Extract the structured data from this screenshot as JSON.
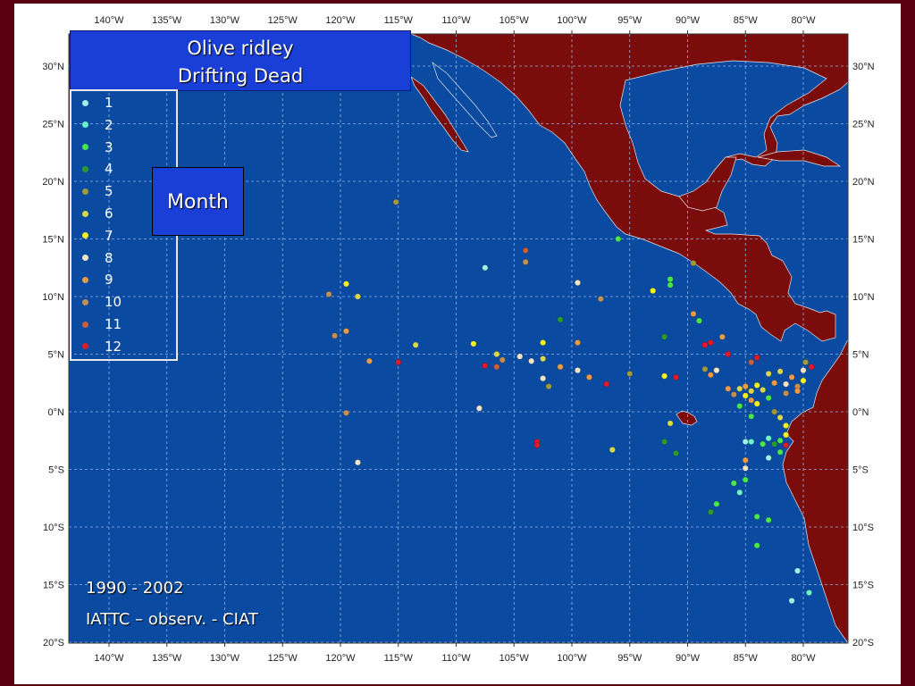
{
  "title": {
    "line1": "Olive ridley",
    "line2": "Drifting Dead"
  },
  "month_label": "Month",
  "legend": [
    {
      "label": "1",
      "color": "#9ef0e6"
    },
    {
      "label": "2",
      "color": "#6ef0c8"
    },
    {
      "label": "3",
      "color": "#49e64a"
    },
    {
      "label": "4",
      "color": "#2e9a2e"
    },
    {
      "label": "5",
      "color": "#a09a3a"
    },
    {
      "label": "6",
      "color": "#d8d84a"
    },
    {
      "label": "7",
      "color": "#f2f21e"
    },
    {
      "label": "8",
      "color": "#f0e4c8"
    },
    {
      "label": "9",
      "color": "#e89a48"
    },
    {
      "label": "10",
      "color": "#c68f52"
    },
    {
      "label": "11",
      "color": "#c8603c"
    },
    {
      "label": "12",
      "color": "#e0192c"
    }
  ],
  "credit": {
    "years": "1990 - 2002",
    "source": "IATTC – observ. - CIAT"
  },
  "axes": {
    "lon_ticks": [
      "140°W",
      "135°W",
      "130°W",
      "125°W",
      "120°W",
      "115°W",
      "110°W",
      "105°W",
      "100°W",
      "95°W",
      "90°W",
      "85°W",
      "80°W"
    ],
    "lat_ticks": [
      "30°N",
      "25°N",
      "20°N",
      "15°N",
      "10°N",
      "5°N",
      "0°N",
      "5°S",
      "10°S",
      "15°S",
      "20°S"
    ]
  },
  "colors": {
    "ocean": "#0a4aa0",
    "land": "#7a0c0c",
    "grid": "#8fb4e8"
  },
  "chart_data": {
    "type": "scatter",
    "xlabel": "",
    "ylabel": "",
    "xlim": [
      -146,
      -76
    ],
    "ylim": [
      -20,
      32
    ],
    "points": [
      {
        "lon": -115.2,
        "lat": 18.2,
        "m": 5
      },
      {
        "lon": -96,
        "lat": 15,
        "m": 3
      },
      {
        "lon": -107.5,
        "lat": 12.5,
        "m": 1
      },
      {
        "lon": -104,
        "lat": 14,
        "m": 11
      },
      {
        "lon": -104,
        "lat": 13,
        "m": 10
      },
      {
        "lon": -121,
        "lat": 10.2,
        "m": 10
      },
      {
        "lon": -119.5,
        "lat": 11.1,
        "m": 7
      },
      {
        "lon": -118.5,
        "lat": 10,
        "m": 6
      },
      {
        "lon": -120.5,
        "lat": 6.6,
        "m": 10
      },
      {
        "lon": -119.5,
        "lat": 7,
        "m": 9
      },
      {
        "lon": -117.5,
        "lat": 4.4,
        "m": 9
      },
      {
        "lon": -115,
        "lat": 4.3,
        "m": 12
      },
      {
        "lon": -113.5,
        "lat": 5.8,
        "m": 6
      },
      {
        "lon": -108.5,
        "lat": 5.9,
        "m": 7
      },
      {
        "lon": -107.5,
        "lat": 4,
        "m": 12
      },
      {
        "lon": -106.5,
        "lat": 3.9,
        "m": 11
      },
      {
        "lon": -106.5,
        "lat": 5,
        "m": 6
      },
      {
        "lon": -106,
        "lat": 4.5,
        "m": 10
      },
      {
        "lon": -104.5,
        "lat": 4.8,
        "m": 8
      },
      {
        "lon": -103.5,
        "lat": 4.4,
        "m": 8
      },
      {
        "lon": -102.5,
        "lat": 4.6,
        "m": 6
      },
      {
        "lon": -102.5,
        "lat": 6,
        "m": 7
      },
      {
        "lon": -102.5,
        "lat": 2.9,
        "m": 8
      },
      {
        "lon": -102,
        "lat": 2.2,
        "m": 5
      },
      {
        "lon": -101,
        "lat": 3.9,
        "m": 9
      },
      {
        "lon": -101,
        "lat": 8,
        "m": 4
      },
      {
        "lon": -99.5,
        "lat": 11.2,
        "m": 8
      },
      {
        "lon": -99.5,
        "lat": 6,
        "m": 9
      },
      {
        "lon": -99.5,
        "lat": 3.6,
        "m": 8
      },
      {
        "lon": -98.5,
        "lat": 3,
        "m": 9
      },
      {
        "lon": -97.5,
        "lat": 9.8,
        "m": 10
      },
      {
        "lon": -97,
        "lat": 2.4,
        "m": 12
      },
      {
        "lon": -95,
        "lat": 3.3,
        "m": 5
      },
      {
        "lon": -93,
        "lat": 10.5,
        "m": 7
      },
      {
        "lon": -92,
        "lat": 6.5,
        "m": 4
      },
      {
        "lon": -91.5,
        "lat": 11.5,
        "m": 3
      },
      {
        "lon": -91.5,
        "lat": 11,
        "m": 3
      },
      {
        "lon": -92,
        "lat": 3.1,
        "m": 7
      },
      {
        "lon": -91,
        "lat": 3,
        "m": 12
      },
      {
        "lon": -89.5,
        "lat": 12.9,
        "m": 5
      },
      {
        "lon": -89.5,
        "lat": 8.5,
        "m": 9
      },
      {
        "lon": -89,
        "lat": 7.9,
        "m": 3
      },
      {
        "lon": -88.5,
        "lat": 5.8,
        "m": 12
      },
      {
        "lon": -88,
        "lat": 6,
        "m": 12
      },
      {
        "lon": -87,
        "lat": 6.5,
        "m": 9
      },
      {
        "lon": -86.5,
        "lat": 5,
        "m": 12
      },
      {
        "lon": -88.5,
        "lat": 3.7,
        "m": 5
      },
      {
        "lon": -88,
        "lat": 3.2,
        "m": 9
      },
      {
        "lon": -87.5,
        "lat": 3.6,
        "m": 8
      },
      {
        "lon": -86.5,
        "lat": 2,
        "m": 9
      },
      {
        "lon": -86,
        "lat": 1.5,
        "m": 10
      },
      {
        "lon": -85.5,
        "lat": 2,
        "m": 6
      },
      {
        "lon": -85,
        "lat": 2.2,
        "m": 9
      },
      {
        "lon": -84.5,
        "lat": 1.8,
        "m": 6
      },
      {
        "lon": -84,
        "lat": 2.3,
        "m": 7
      },
      {
        "lon": -83.5,
        "lat": 1.9,
        "m": 6
      },
      {
        "lon": -84.5,
        "lat": 1,
        "m": 9
      },
      {
        "lon": -85,
        "lat": 1.4,
        "m": 7
      },
      {
        "lon": -85.5,
        "lat": 0.5,
        "m": 3
      },
      {
        "lon": -84,
        "lat": 0.7,
        "m": 7
      },
      {
        "lon": -84.5,
        "lat": 4.3,
        "m": 11
      },
      {
        "lon": -84,
        "lat": 4.7,
        "m": 12
      },
      {
        "lon": -83,
        "lat": 3.3,
        "m": 6
      },
      {
        "lon": -82.5,
        "lat": 2.5,
        "m": 9
      },
      {
        "lon": -82,
        "lat": 3.5,
        "m": 6
      },
      {
        "lon": -81.5,
        "lat": 2.4,
        "m": 8
      },
      {
        "lon": -81,
        "lat": 3,
        "m": 9
      },
      {
        "lon": -80.5,
        "lat": 2.2,
        "m": 10
      },
      {
        "lon": -80,
        "lat": 3.6,
        "m": 8
      },
      {
        "lon": -80.5,
        "lat": 1.8,
        "m": 9
      },
      {
        "lon": -79.8,
        "lat": 4.3,
        "m": 5
      },
      {
        "lon": -79.3,
        "lat": 3.9,
        "m": 12
      },
      {
        "lon": -80,
        "lat": 2.7,
        "m": 7
      },
      {
        "lon": -81.5,
        "lat": 1.6,
        "m": 10
      },
      {
        "lon": -83,
        "lat": 1.2,
        "m": 3
      },
      {
        "lon": -82.5,
        "lat": 0,
        "m": 5
      },
      {
        "lon": -82,
        "lat": -0.5,
        "m": 6
      },
      {
        "lon": -81.5,
        "lat": -1.2,
        "m": 7
      },
      {
        "lon": -81.5,
        "lat": -2,
        "m": 7
      },
      {
        "lon": -82,
        "lat": -2.5,
        "m": 3
      },
      {
        "lon": -81.5,
        "lat": -2.9,
        "m": 12
      },
      {
        "lon": -82.5,
        "lat": -2.8,
        "m": 4
      },
      {
        "lon": -83,
        "lat": -2.3,
        "m": 2
      },
      {
        "lon": -83.5,
        "lat": -2.8,
        "m": 3
      },
      {
        "lon": -84.5,
        "lat": -2.6,
        "m": 2
      },
      {
        "lon": -85,
        "lat": -2.6,
        "m": 1
      },
      {
        "lon": -82,
        "lat": -3.5,
        "m": 3
      },
      {
        "lon": -83,
        "lat": -4,
        "m": 1
      },
      {
        "lon": -84.5,
        "lat": -0.4,
        "m": 3
      },
      {
        "lon": -85,
        "lat": -4.2,
        "m": 9
      },
      {
        "lon": -85,
        "lat": -4.9,
        "m": 8
      },
      {
        "lon": -85,
        "lat": -5.9,
        "m": 3
      },
      {
        "lon": -86,
        "lat": -6.2,
        "m": 3
      },
      {
        "lon": -85.5,
        "lat": -7,
        "m": 2
      },
      {
        "lon": -87.5,
        "lat": -8,
        "m": 3
      },
      {
        "lon": -88,
        "lat": -8.7,
        "m": 4
      },
      {
        "lon": -84,
        "lat": -9.1,
        "m": 3
      },
      {
        "lon": -83,
        "lat": -9.4,
        "m": 3
      },
      {
        "lon": -84,
        "lat": -11.6,
        "m": 3
      },
      {
        "lon": -92,
        "lat": -2.6,
        "m": 4
      },
      {
        "lon": -91,
        "lat": -3.6,
        "m": 4
      },
      {
        "lon": -91.5,
        "lat": -1,
        "m": 6
      },
      {
        "lon": -103,
        "lat": -2.6,
        "m": 12
      },
      {
        "lon": -103,
        "lat": -2.9,
        "m": 12
      },
      {
        "lon": -96.5,
        "lat": -3.3,
        "m": 6
      },
      {
        "lon": -108,
        "lat": 0.3,
        "m": 8
      },
      {
        "lon": -119.5,
        "lat": -0.1,
        "m": 10
      },
      {
        "lon": -118.5,
        "lat": -4.4,
        "m": 8
      },
      {
        "lon": -80.5,
        "lat": -13.8,
        "m": 1
      },
      {
        "lon": -79.5,
        "lat": -15.7,
        "m": 2
      },
      {
        "lon": -81,
        "lat": -16.4,
        "m": 1
      }
    ]
  }
}
